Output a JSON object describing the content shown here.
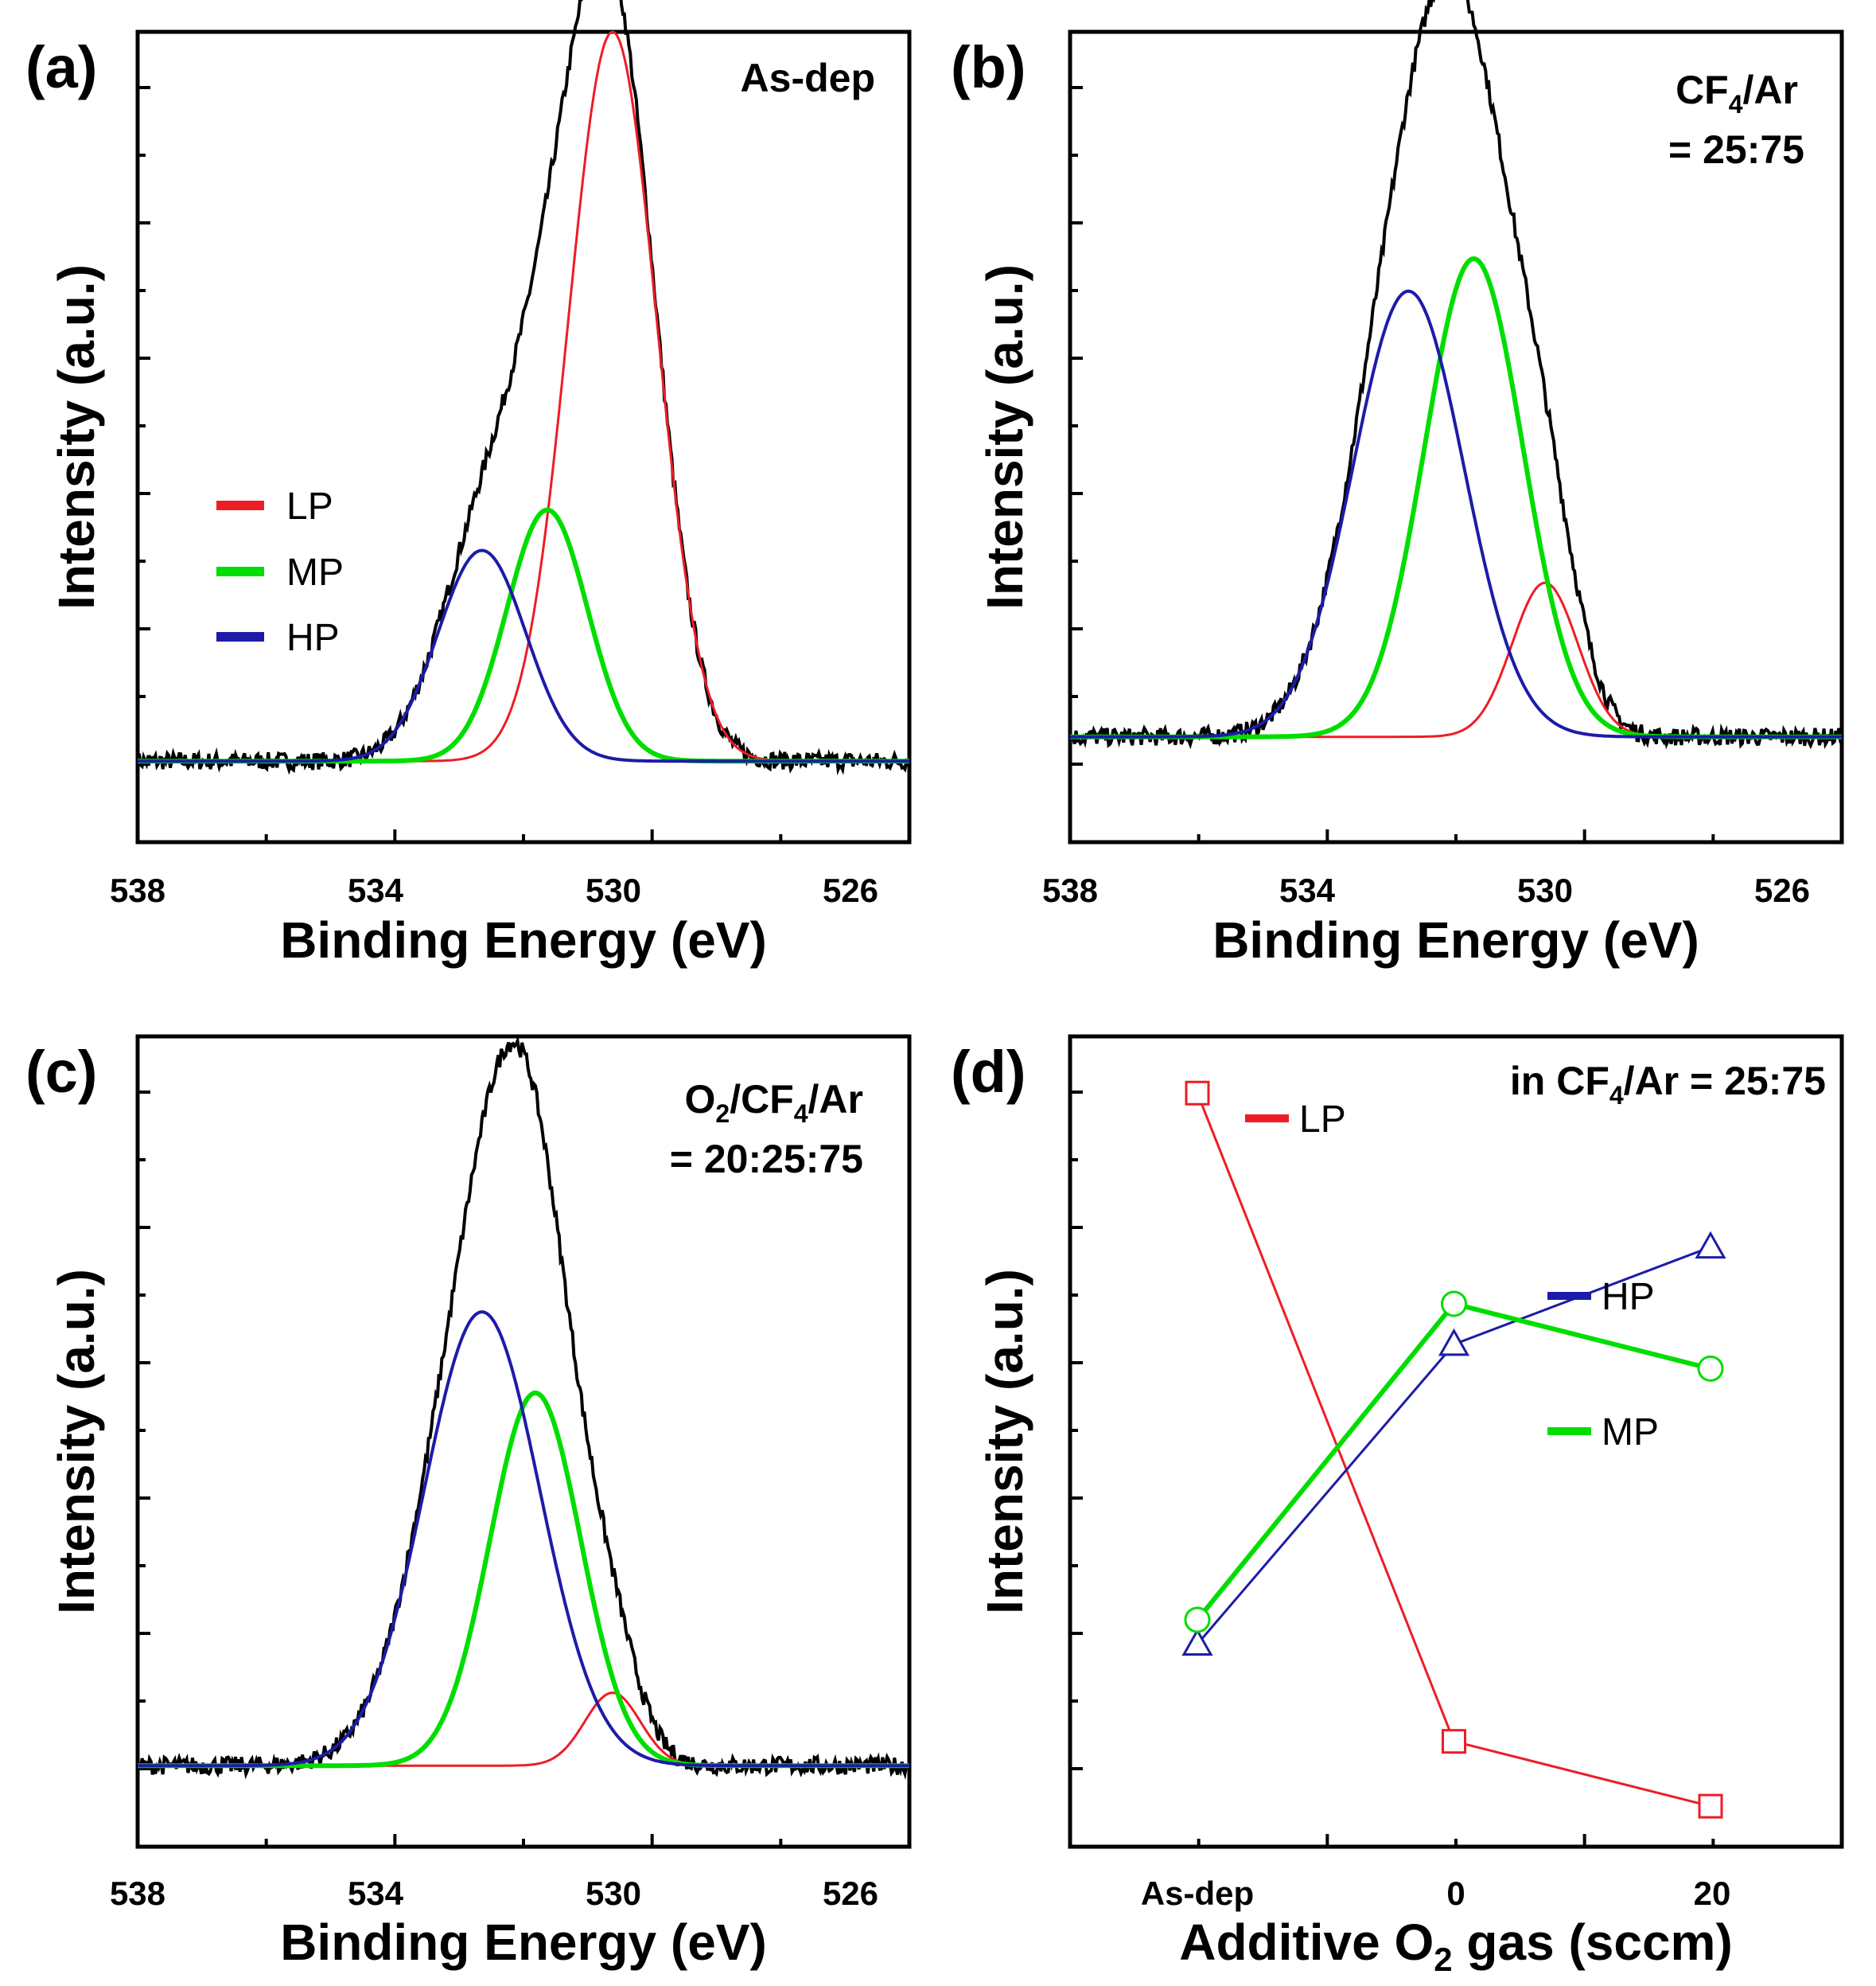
{
  "colors": {
    "LP": "#ee1c25",
    "MP": "#00dd00",
    "HP": "#1c1ca8",
    "envelope": "#000000"
  },
  "chart_data": [
    {
      "panel": "(a)",
      "type": "line",
      "annotation": [
        "As-dep"
      ],
      "xlabel": "Binding Energy (eV)",
      "ylabel": "Intensity (a.u.)",
      "xlim": [
        538,
        525
      ],
      "x_ticks": [
        "538",
        "534",
        "530",
        "526"
      ],
      "baseline": 0.1,
      "legend": [
        "LP",
        "MP",
        "HP"
      ],
      "series": [
        {
          "name": "LP",
          "center": 530.0,
          "height": 0.9,
          "fwhm": 1.75
        },
        {
          "name": "MP",
          "center": 531.1,
          "height": 0.31,
          "fwhm": 1.6
        },
        {
          "name": "HP",
          "center": 532.2,
          "height": 0.26,
          "fwhm": 1.75
        }
      ]
    },
    {
      "panel": "(b)",
      "type": "line",
      "annotation": [
        "CF",
        "4",
        "/Ar",
        "= 25:75"
      ],
      "xlabel": "Binding Energy (eV)",
      "ylabel": "Intensity (a.u.)",
      "xlim": [
        538,
        525
      ],
      "x_ticks": [
        "538",
        "534",
        "530",
        "526"
      ],
      "baseline": 0.13,
      "series": [
        {
          "name": "LP",
          "center": 530.0,
          "height": 0.19,
          "fwhm": 1.3
        },
        {
          "name": "MP",
          "center": 531.2,
          "height": 0.59,
          "fwhm": 1.95
        },
        {
          "name": "HP",
          "center": 532.3,
          "height": 0.55,
          "fwhm": 2.2
        }
      ]
    },
    {
      "panel": "(c)",
      "type": "line",
      "annotation": [
        "O",
        "2",
        "/CF",
        "4",
        "/Ar",
        "= 20:25:75"
      ],
      "xlabel": "Binding Energy (eV)",
      "ylabel": "Intensity (a.u.)",
      "xlim": [
        538,
        525
      ],
      "x_ticks": [
        "538",
        "534",
        "530",
        "526"
      ],
      "baseline": 0.1,
      "series": [
        {
          "name": "LP",
          "center": 530.0,
          "height": 0.09,
          "fwhm": 1.1
        },
        {
          "name": "MP",
          "center": 531.3,
          "height": 0.46,
          "fwhm": 1.8
        },
        {
          "name": "HP",
          "center": 532.2,
          "height": 0.56,
          "fwhm": 2.3
        }
      ]
    },
    {
      "panel": "(d)",
      "type": "line",
      "annotation": [
        "in CF",
        "4",
        "/Ar = 25:75"
      ],
      "xlabel": "Additive O",
      "xlabel_sub": "2",
      "xlabel_tail": " gas (sccm)",
      "ylabel": "Intensity (a.u.)",
      "categories": [
        "As-dep",
        "0",
        "20"
      ],
      "series": [
        {
          "name": "LP",
          "marker": "square",
          "values": [
            0.93,
            0.13,
            0.05
          ]
        },
        {
          "name": "HP",
          "marker": "triangle",
          "values": [
            0.25,
            0.62,
            0.74
          ]
        },
        {
          "name": "MP",
          "marker": "circle",
          "values": [
            0.28,
            0.67,
            0.59
          ]
        }
      ]
    }
  ]
}
